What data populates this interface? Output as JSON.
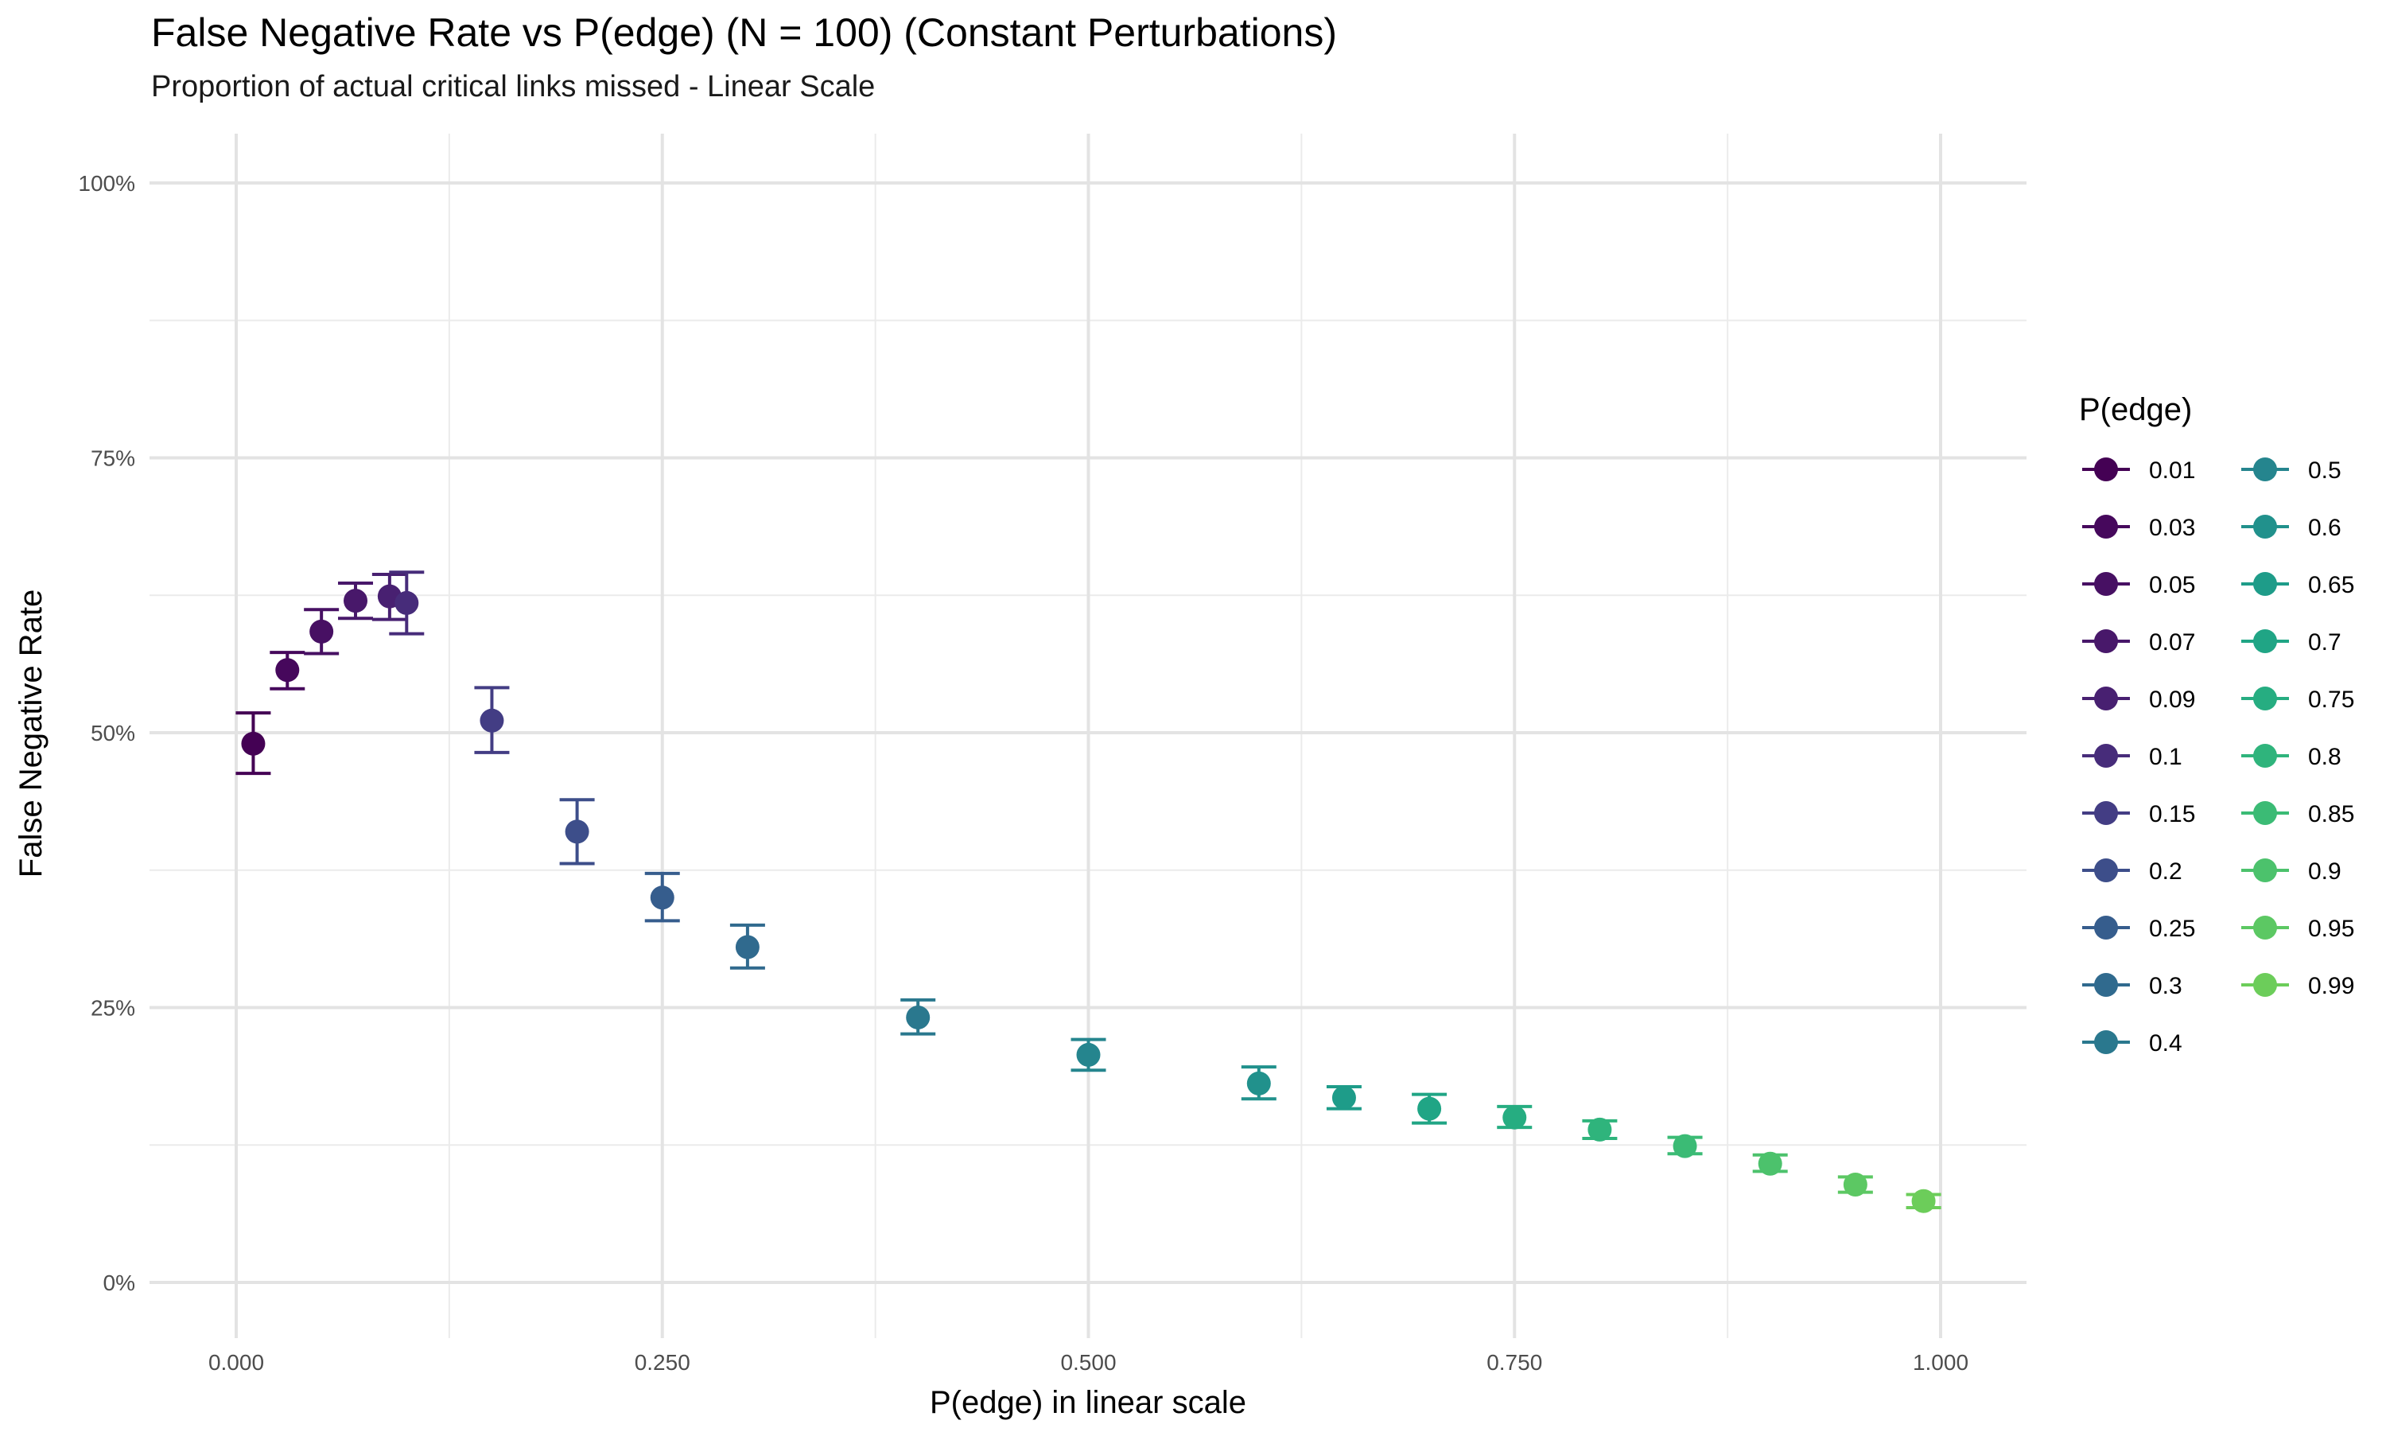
{
  "chart_data": {
    "type": "scatter",
    "title": "False Negative Rate vs P(edge) (N = 100) (Constant Perturbations)",
    "subtitle": "Proportion of actual critical links missed - Linear Scale",
    "xlabel": "P(edge) in linear scale",
    "ylabel": "False Negative Rate",
    "xlim": [
      -0.025,
      1.025
    ],
    "ylim": [
      -0.04,
      1.04
    ],
    "x_ticks": [
      0,
      0.25,
      0.5,
      0.75,
      1
    ],
    "x_tick_labels": [
      "0.000",
      "0.250",
      "0.500",
      "0.750",
      "1.000"
    ],
    "y_ticks": [
      0,
      0.25,
      0.5,
      0.75,
      1
    ],
    "y_tick_labels": [
      "0%",
      "25%",
      "50%",
      "75%",
      "100%"
    ],
    "grid": true,
    "legend_title": "P(edge)",
    "legend_position": "right",
    "points": [
      {
        "label": "0.01",
        "x": 0.01,
        "y": 0.49,
        "lo": 0.463,
        "hi": 0.518,
        "color": "#440154"
      },
      {
        "label": "0.03",
        "x": 0.03,
        "y": 0.557,
        "lo": 0.54,
        "hi": 0.573,
        "color": "#46085c"
      },
      {
        "label": "0.05",
        "x": 0.05,
        "y": 0.592,
        "lo": 0.572,
        "hi": 0.612,
        "color": "#471063"
      },
      {
        "label": "0.07",
        "x": 0.07,
        "y": 0.62,
        "lo": 0.604,
        "hi": 0.636,
        "color": "#48186a"
      },
      {
        "label": "0.09",
        "x": 0.09,
        "y": 0.624,
        "lo": 0.603,
        "hi": 0.644,
        "color": "#482071"
      },
      {
        "label": "0.1",
        "x": 0.1,
        "y": 0.618,
        "lo": 0.59,
        "hi": 0.646,
        "color": "#472c7a"
      },
      {
        "label": "0.15",
        "x": 0.15,
        "y": 0.511,
        "lo": 0.482,
        "hi": 0.541,
        "color": "#433d84"
      },
      {
        "label": "0.2",
        "x": 0.2,
        "y": 0.41,
        "lo": 0.381,
        "hi": 0.439,
        "color": "#3d4e8a"
      },
      {
        "label": "0.25",
        "x": 0.25,
        "y": 0.35,
        "lo": 0.329,
        "hi": 0.372,
        "color": "#365d8d"
      },
      {
        "label": "0.3",
        "x": 0.3,
        "y": 0.305,
        "lo": 0.286,
        "hi": 0.325,
        "color": "#306a8e"
      },
      {
        "label": "0.4",
        "x": 0.4,
        "y": 0.241,
        "lo": 0.226,
        "hi": 0.257,
        "color": "#2a788e"
      },
      {
        "label": "0.5",
        "x": 0.5,
        "y": 0.207,
        "lo": 0.193,
        "hi": 0.221,
        "color": "#25858e"
      },
      {
        "label": "0.6",
        "x": 0.6,
        "y": 0.181,
        "lo": 0.167,
        "hi": 0.196,
        "color": "#21918c"
      },
      {
        "label": "0.65",
        "x": 0.65,
        "y": 0.168,
        "lo": 0.158,
        "hi": 0.178,
        "color": "#1e9c89"
      },
      {
        "label": "0.7",
        "x": 0.7,
        "y": 0.158,
        "lo": 0.145,
        "hi": 0.171,
        "color": "#20a585"
      },
      {
        "label": "0.75",
        "x": 0.75,
        "y": 0.15,
        "lo": 0.141,
        "hi": 0.16,
        "color": "#26ad81"
      },
      {
        "label": "0.8",
        "x": 0.8,
        "y": 0.139,
        "lo": 0.131,
        "hi": 0.147,
        "color": "#2fb47c"
      },
      {
        "label": "0.85",
        "x": 0.85,
        "y": 0.124,
        "lo": 0.117,
        "hi": 0.132,
        "color": "#3bbb75"
      },
      {
        "label": "0.9",
        "x": 0.9,
        "y": 0.108,
        "lo": 0.101,
        "hi": 0.116,
        "color": "#4cc26c"
      },
      {
        "label": "0.95",
        "x": 0.95,
        "y": 0.089,
        "lo": 0.082,
        "hi": 0.096,
        "color": "#5cc863"
      },
      {
        "label": "0.99",
        "x": 0.99,
        "y": 0.074,
        "lo": 0.068,
        "hi": 0.08,
        "color": "#6ccd5a"
      }
    ]
  }
}
